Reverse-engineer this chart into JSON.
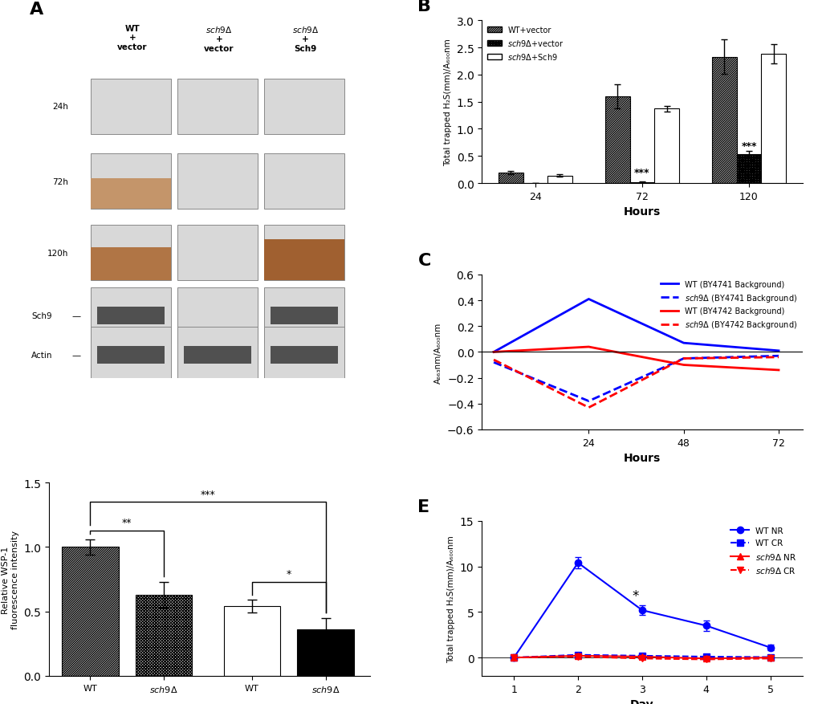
{
  "panel_B": {
    "groups": [
      "24",
      "72",
      "120"
    ],
    "series": [
      {
        "label": "WT+vector",
        "values": [
          0.19,
          1.6,
          2.33
        ],
        "errors": [
          0.03,
          0.22,
          0.32
        ]
      },
      {
        "label": "sch9Δ+vector",
        "values": [
          0.005,
          0.01,
          0.53
        ],
        "errors": [
          0.002,
          0.015,
          0.06
        ]
      },
      {
        "label": "sch9Δ+Sch9",
        "values": [
          0.14,
          1.37,
          2.38
        ],
        "errors": [
          0.02,
          0.05,
          0.18
        ]
      }
    ],
    "ylabel": "Total trapped H₂S(mm)/A₆₀₀nm",
    "xlabel": "Hours",
    "ylim": [
      0,
      3.0
    ],
    "yticks": [
      0.0,
      0.5,
      1.0,
      1.5,
      2.0,
      2.5,
      3.0
    ]
  },
  "panel_C": {
    "ylabel": "A₆₆₃nm/A₆₀₀nm",
    "xlabel": "Hours",
    "ylim": [
      -0.6,
      0.6
    ],
    "yticks": [
      -0.6,
      -0.4,
      -0.2,
      0.0,
      0.2,
      0.4,
      0.6
    ],
    "xticks": [
      0,
      24,
      48,
      72
    ],
    "series": [
      {
        "label": "WT (BY4741 Background)",
        "x": [
          0,
          24,
          48,
          72
        ],
        "y": [
          0.0,
          0.41,
          0.07,
          0.01
        ],
        "color": "blue",
        "linestyle": "-",
        "linewidth": 2
      },
      {
        "label": "sch9Δ (BY4741 Background)",
        "x": [
          0,
          24,
          48,
          72
        ],
        "y": [
          -0.08,
          -0.38,
          -0.05,
          -0.03
        ],
        "color": "blue",
        "linestyle": "--",
        "linewidth": 2
      },
      {
        "label": "WT (BY4742 Background)",
        "x": [
          0,
          24,
          48,
          72
        ],
        "y": [
          0.0,
          0.04,
          -0.1,
          -0.14
        ],
        "color": "red",
        "linestyle": "-",
        "linewidth": 2
      },
      {
        "label": "sch9Δ (BY4742 Background)",
        "x": [
          0,
          24,
          48,
          72
        ],
        "y": [
          -0.06,
          -0.43,
          -0.05,
          -0.04
        ],
        "color": "red",
        "linestyle": "--",
        "linewidth": 2
      }
    ]
  },
  "panel_D": {
    "categories": [
      "WT",
      "sch9Δ",
      "WT",
      "sch9Δ"
    ],
    "values": [
      1.0,
      0.63,
      0.54,
      0.36
    ],
    "errors": [
      0.06,
      0.1,
      0.05,
      0.09
    ],
    "ylabel": "Relative WSP-1\nfluorescence intensity",
    "ylim": [
      0,
      1.5
    ],
    "yticks": [
      0.0,
      0.5,
      1.0,
      1.5
    ]
  },
  "panel_E": {
    "ylabel": "Total trapped H₂S(mm)/A₆₀₀nm",
    "xlabel": "Day",
    "ylim": [
      -2,
      15
    ],
    "yticks": [
      0,
      5,
      10,
      15
    ],
    "xticks": [
      1,
      2,
      3,
      4,
      5
    ],
    "series": [
      {
        "label": "WT NR",
        "x": [
          1,
          2,
          3,
          4,
          5
        ],
        "y": [
          0.0,
          10.4,
          5.2,
          3.5,
          1.1
        ],
        "errors": [
          0.1,
          0.6,
          0.5,
          0.6,
          0.3
        ],
        "color": "blue",
        "linestyle": "-",
        "marker": "o"
      },
      {
        "label": "WT CR",
        "x": [
          1,
          2,
          3,
          4,
          5
        ],
        "y": [
          0.0,
          0.3,
          0.2,
          0.1,
          0.05
        ],
        "errors": [
          0.05,
          0.15,
          0.1,
          0.05,
          0.02
        ],
        "color": "blue",
        "linestyle": "--",
        "marker": "s"
      },
      {
        "label": "sch9Δ NR",
        "x": [
          1,
          2,
          3,
          4,
          5
        ],
        "y": [
          0.0,
          0.2,
          0.1,
          -0.1,
          0.0
        ],
        "errors": [
          0.05,
          0.1,
          0.05,
          0.05,
          0.05
        ],
        "color": "red",
        "linestyle": "-",
        "marker": "^"
      },
      {
        "label": "sch9Δ CR",
        "x": [
          1,
          2,
          3,
          4,
          5
        ],
        "y": [
          0.0,
          0.1,
          -0.1,
          -0.2,
          -0.1
        ],
        "errors": [
          0.05,
          0.08,
          0.05,
          0.05,
          0.05
        ],
        "color": "red",
        "linestyle": "--",
        "marker": "v"
      }
    ]
  }
}
